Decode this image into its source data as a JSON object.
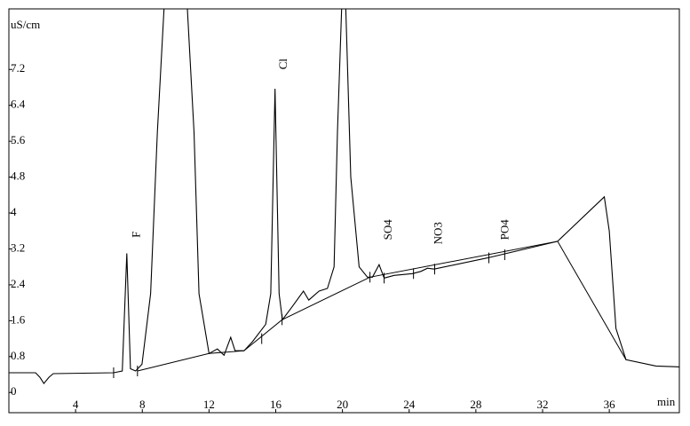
{
  "chart_data": {
    "type": "line",
    "y_label": "uS/cm",
    "x_label": "min",
    "xlim": [
      0,
      40.2
    ],
    "ylim": [
      -0.45,
      8.55
    ],
    "xticks": [
      4,
      8,
      12,
      16,
      20,
      24,
      28,
      32,
      36
    ],
    "yticks": [
      0,
      0.8,
      1.6,
      2.4,
      3.2,
      4,
      4.8,
      5.6,
      6.4,
      7.2
    ],
    "series": [
      {
        "color": "#000000",
        "x": [
          0,
          1.6,
          1.86,
          2.1,
          2.4,
          2.66,
          6.28,
          6.8,
          7.07,
          7.29,
          7.6,
          7.98,
          8.5,
          8.9,
          9.3,
          10.7,
          11.1,
          11.4,
          12.0,
          12.5,
          12.9,
          13.3,
          13.56,
          14.1,
          14.6,
          15.4,
          15.7,
          15.96,
          16.2,
          16.4,
          17.0,
          17.66,
          17.98,
          18.6,
          19.1,
          19.5,
          19.7,
          19.95,
          20.2,
          20.5,
          21.0,
          21.5,
          21.8,
          22.2,
          22.5,
          23.1,
          24.2,
          24.7,
          25.1,
          25.5,
          28.7,
          32.9,
          35.7,
          36.0,
          36.4,
          37.0,
          38.8,
          40.2
        ],
        "values": [
          0.44,
          0.44,
          0.34,
          0.2,
          0.34,
          0.42,
          0.44,
          0.48,
          3.1,
          0.53,
          0.48,
          0.63,
          2.2,
          5.8,
          8.55,
          8.55,
          5.8,
          2.2,
          0.87,
          0.97,
          0.83,
          1.23,
          0.93,
          0.93,
          1.13,
          1.52,
          2.2,
          6.77,
          2.2,
          1.62,
          1.92,
          2.26,
          2.06,
          2.26,
          2.32,
          2.8,
          5.8,
          8.55,
          8.55,
          4.8,
          2.8,
          2.57,
          2.57,
          2.85,
          2.55,
          2.61,
          2.65,
          2.7,
          2.77,
          2.75,
          3.0,
          3.37,
          4.36,
          3.6,
          1.43,
          0.73,
          0.59,
          0.57
        ]
      }
    ],
    "baseline": {
      "x": [
        7.71,
        12.0,
        14.1,
        16.38,
        21.65,
        32.9,
        37.0
      ],
      "values": [
        0.48,
        0.87,
        0.93,
        1.62,
        2.57,
        3.37,
        0.73
      ]
    },
    "integration_marks": {
      "x": [
        6.28,
        7.71,
        15.16,
        16.38,
        21.65,
        22.5,
        24.26,
        25.53,
        28.78,
        29.73
      ],
      "values": [
        0.44,
        0.48,
        1.2,
        1.62,
        2.57,
        2.55,
        2.65,
        2.75,
        3.0,
        3.07
      ]
    },
    "annotations": [
      {
        "text": "F",
        "x": 7.7,
        "y": 3.45
      },
      {
        "text": "Cl",
        "x": 16.5,
        "y": 7.2
      },
      {
        "text": "SO4",
        "x": 22.8,
        "y": 3.4
      },
      {
        "text": "NO3",
        "x": 25.8,
        "y": 3.3
      },
      {
        "text": "PO4",
        "x": 29.8,
        "y": 3.4
      }
    ]
  }
}
